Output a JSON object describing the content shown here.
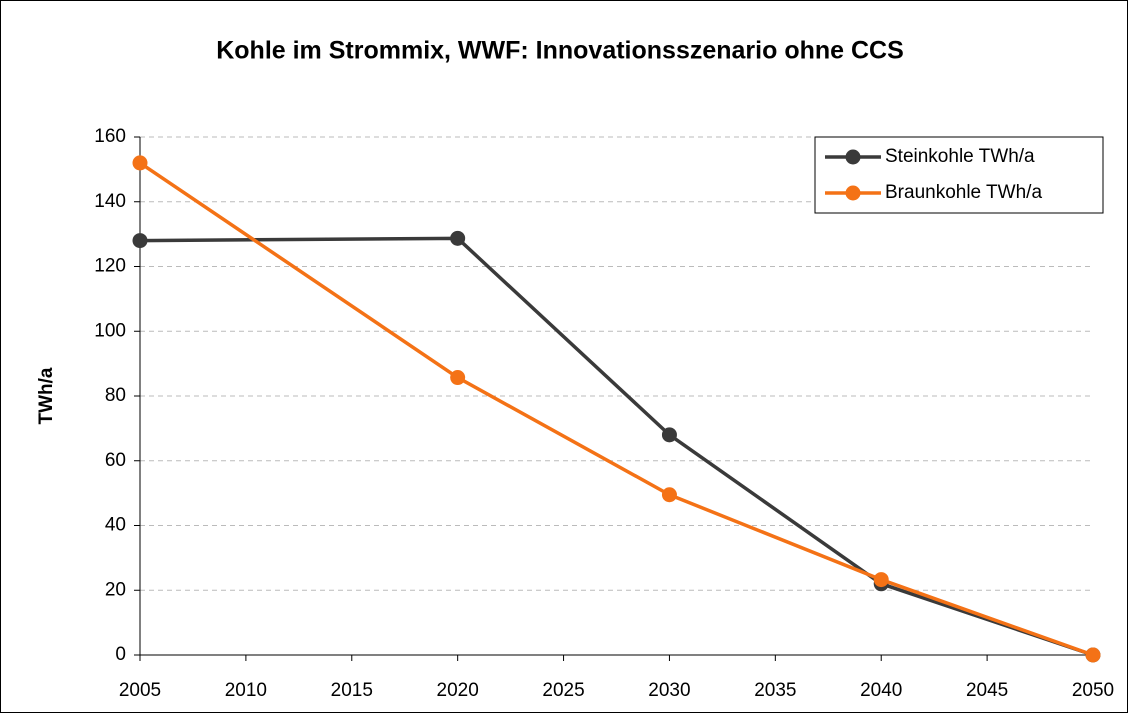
{
  "chart_data": {
    "type": "line",
    "title": "Kohle im Strommix, WWF: Innovationsszenario ohne CCS",
    "y_label": "TWh/a",
    "x": [
      2005,
      2020,
      2030,
      2040,
      2050
    ],
    "series": [
      {
        "name": "Steinkohle TWh/a",
        "color": "#3a3a3a",
        "values": [
          128,
          128.7,
          68,
          22,
          0
        ]
      },
      {
        "name": "Braunkohle TWh/a",
        "color": "#f47216",
        "values": [
          152,
          85.7,
          49.5,
          23.3,
          0
        ]
      }
    ],
    "xlim": [
      2005,
      2050
    ],
    "xticks": [
      2005,
      2010,
      2015,
      2020,
      2025,
      2030,
      2035,
      2040,
      2045,
      2050
    ],
    "ylim": [
      0,
      160
    ],
    "yticks": [
      0,
      20,
      40,
      60,
      80,
      100,
      120,
      140,
      160
    ],
    "grid": true,
    "legend": "upper right"
  }
}
